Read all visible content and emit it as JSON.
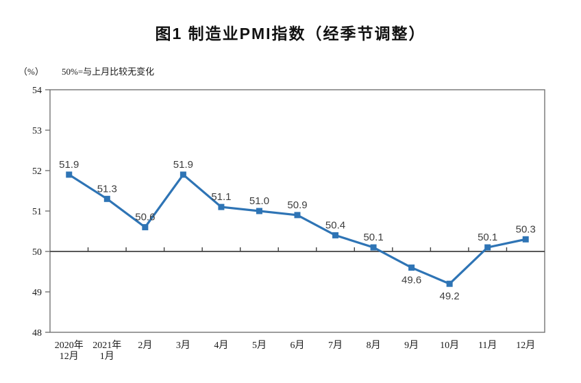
{
  "page": {
    "title": "图1 制造业PMI指数（经季节调整）"
  },
  "chart_data": {
    "type": "line",
    "title": "图1 制造业PMI指数（经季节调整）",
    "unit_label": "（%）",
    "note": "50%=与上月比较无变化",
    "series_name": "制造业PMI指数",
    "categories": [
      [
        "2020年",
        "12月"
      ],
      [
        "2021年",
        "1月"
      ],
      [
        "2月"
      ],
      [
        "3月"
      ],
      [
        "4月"
      ],
      [
        "5月"
      ],
      [
        "6月"
      ],
      [
        "7月"
      ],
      [
        "8月"
      ],
      [
        "9月"
      ],
      [
        "10月"
      ],
      [
        "11月"
      ],
      [
        "12月"
      ]
    ],
    "values": [
      51.9,
      51.3,
      50.6,
      51.9,
      51.1,
      51.0,
      50.9,
      50.4,
      50.1,
      49.6,
      49.2,
      50.1,
      50.3
    ],
    "value_labels": [
      "51.9",
      "51.3",
      "50.6",
      "51.9",
      "51.1",
      "51.0",
      "50.9",
      "50.4",
      "50.1",
      "49.6",
      "49.2",
      "50.1",
      "50.3"
    ],
    "label_positions": [
      "above",
      "above",
      "above",
      "above",
      "above",
      "above",
      "above",
      "above",
      "above",
      "below",
      "below",
      "above",
      "above"
    ],
    "ylim": [
      48,
      54
    ],
    "y_ticks": [
      48,
      49,
      50,
      51,
      52,
      53,
      54
    ],
    "baseline": 50,
    "grid": false,
    "legend": "none",
    "colors": {
      "line": "#2E74B5",
      "frame": "#737373",
      "baseline": "#404040",
      "data_label": "#3d3d3d",
      "tick_label": "#1a1a1a"
    }
  }
}
